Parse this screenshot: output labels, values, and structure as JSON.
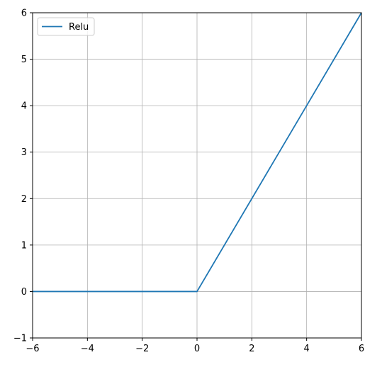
{
  "chart_data": {
    "type": "line",
    "title": "",
    "xlabel": "",
    "ylabel": "",
    "xlim": [
      -6,
      6
    ],
    "ylim": [
      -1,
      6
    ],
    "grid": true,
    "legend_placement": "top-left",
    "x_ticks": [
      {
        "value": -6,
        "label": "−6"
      },
      {
        "value": -4,
        "label": "−4"
      },
      {
        "value": -2,
        "label": "−2"
      },
      {
        "value": 0,
        "label": "0"
      },
      {
        "value": 2,
        "label": "2"
      },
      {
        "value": 4,
        "label": "4"
      },
      {
        "value": 6,
        "label": "6"
      }
    ],
    "y_ticks": [
      {
        "value": -1,
        "label": "−1"
      },
      {
        "value": 0,
        "label": "0"
      },
      {
        "value": 1,
        "label": "1"
      },
      {
        "value": 2,
        "label": "2"
      },
      {
        "value": 3,
        "label": "3"
      },
      {
        "value": 4,
        "label": "4"
      },
      {
        "value": 5,
        "label": "5"
      },
      {
        "value": 6,
        "label": "6"
      }
    ],
    "series": [
      {
        "name": "Relu",
        "color": "#1f77b4",
        "x": [
          -6,
          0,
          6
        ],
        "y": [
          0,
          0,
          6
        ]
      }
    ]
  }
}
